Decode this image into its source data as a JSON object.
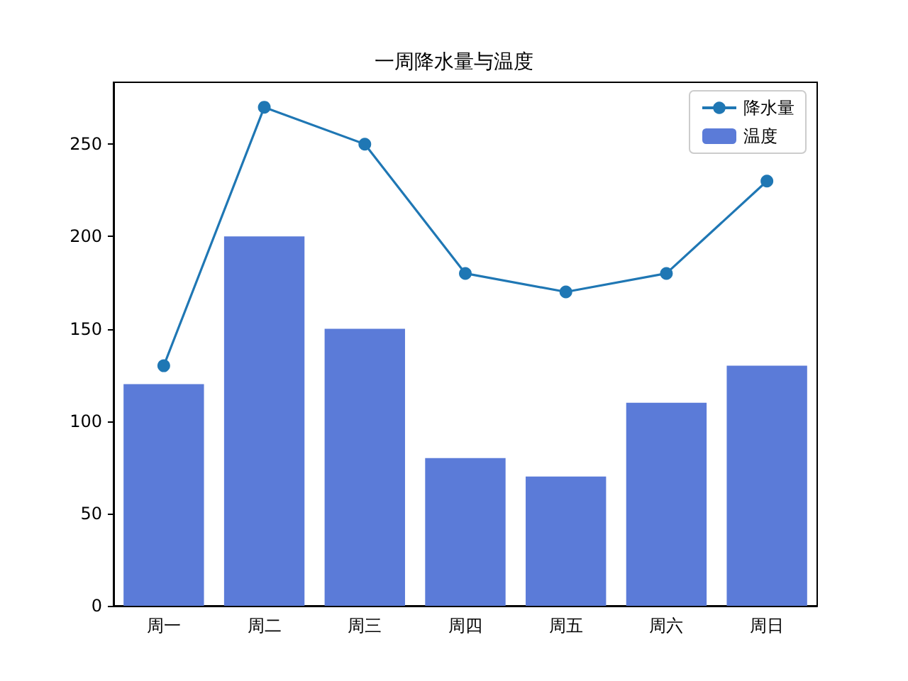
{
  "chart_data": {
    "type": "bar",
    "title": "一周降水量与温度",
    "categories": [
      "周一",
      "周二",
      "周三",
      "周四",
      "周五",
      "周六",
      "周日"
    ],
    "series": [
      {
        "name": "降水量",
        "type": "line",
        "color": "#1f77b4",
        "marker": "circle",
        "values": [
          130,
          270,
          250,
          180,
          170,
          180,
          230
        ]
      },
      {
        "name": "温度",
        "color": "#5b7bd8",
        "values": [
          120,
          200,
          150,
          80,
          70,
          110,
          130
        ]
      }
    ],
    "ylim": [
      0,
      283.5
    ],
    "yticks": [
      0,
      50,
      100,
      150,
      200,
      250
    ],
    "grid": false,
    "legend": "top right"
  }
}
